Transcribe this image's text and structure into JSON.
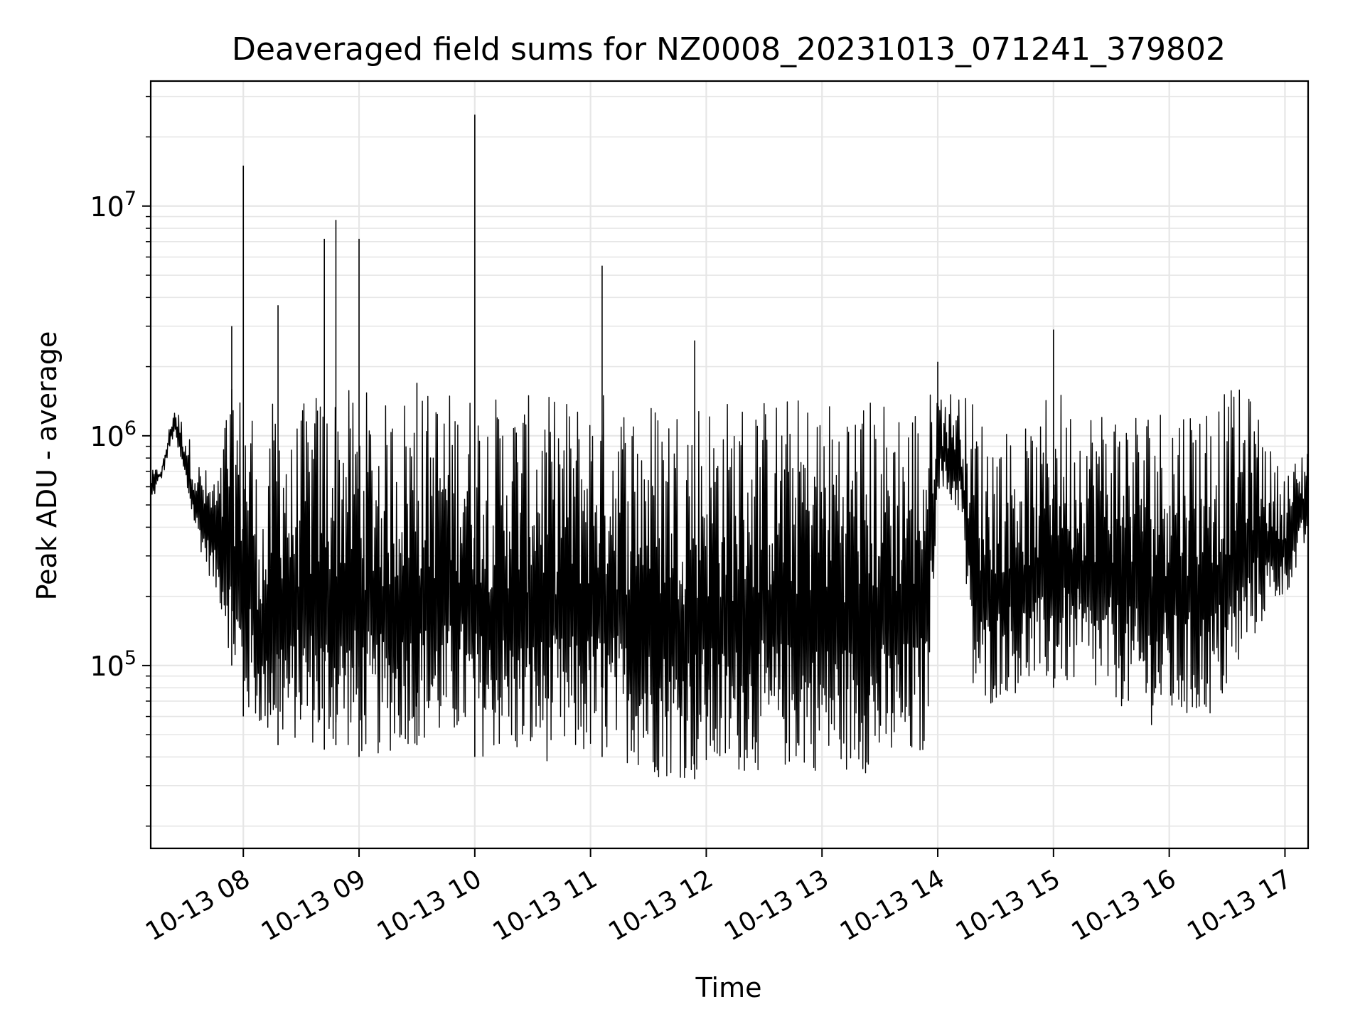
{
  "chart_data": {
    "type": "line",
    "title": "Deaveraged field sums for NZ0008_20231013_071241_379802",
    "xlabel": "Time",
    "ylabel": "Peak ADU - average",
    "yscale": "log",
    "ylim": [
      16000,
      35000000
    ],
    "xlim": [
      "2023-10-13 07:12",
      "2023-10-13 17:12"
    ],
    "grid": true,
    "line_color": "#000000",
    "grid_color": "#e6e6e6",
    "x_ticks": [
      {
        "value": "2023-10-13 08:00",
        "label": "10-13 08"
      },
      {
        "value": "2023-10-13 09:00",
        "label": "10-13 09"
      },
      {
        "value": "2023-10-13 10:00",
        "label": "10-13 10"
      },
      {
        "value": "2023-10-13 11:00",
        "label": "10-13 11"
      },
      {
        "value": "2023-10-13 12:00",
        "label": "10-13 12"
      },
      {
        "value": "2023-10-13 13:00",
        "label": "10-13 13"
      },
      {
        "value": "2023-10-13 14:00",
        "label": "10-13 14"
      },
      {
        "value": "2023-10-13 15:00",
        "label": "10-13 15"
      },
      {
        "value": "2023-10-13 16:00",
        "label": "10-13 16"
      },
      {
        "value": "2023-10-13 17:00",
        "label": "10-13 17"
      }
    ],
    "y_ticks": [
      {
        "value": 100000,
        "base": "10",
        "exp": "5"
      },
      {
        "value": 1000000,
        "base": "10",
        "exp": "6"
      },
      {
        "value": 10000000,
        "base": "10",
        "exp": "7"
      }
    ],
    "series": [
      {
        "x": [
          "2023-10-13 07:12",
          "2023-10-13 07:18",
          "2023-10-13 07:24",
          "2023-10-13 07:30",
          "2023-10-13 07:36",
          "2023-10-13 07:42",
          "2023-10-13 07:48",
          "2023-10-13 07:54",
          "2023-10-13 08:00",
          "2023-10-13 08:06",
          "2023-10-13 08:12",
          "2023-10-13 08:18",
          "2023-10-13 08:24",
          "2023-10-13 08:30",
          "2023-10-13 08:36",
          "2023-10-13 08:42",
          "2023-10-13 08:48",
          "2023-10-13 08:54",
          "2023-10-13 09:00",
          "2023-10-13 09:06",
          "2023-10-13 09:12",
          "2023-10-13 09:18",
          "2023-10-13 09:24",
          "2023-10-13 09:30",
          "2023-10-13 09:36",
          "2023-10-13 09:42",
          "2023-10-13 09:48",
          "2023-10-13 09:54",
          "2023-10-13 10:00",
          "2023-10-13 10:06",
          "2023-10-13 10:12",
          "2023-10-13 10:18",
          "2023-10-13 10:24",
          "2023-10-13 10:30",
          "2023-10-13 10:36",
          "2023-10-13 10:42",
          "2023-10-13 10:48",
          "2023-10-13 10:54",
          "2023-10-13 11:00",
          "2023-10-13 11:06",
          "2023-10-13 11:12",
          "2023-10-13 11:18",
          "2023-10-13 11:24",
          "2023-10-13 11:30",
          "2023-10-13 11:36",
          "2023-10-13 11:42",
          "2023-10-13 11:48",
          "2023-10-13 11:54",
          "2023-10-13 12:00",
          "2023-10-13 12:06",
          "2023-10-13 12:12",
          "2023-10-13 12:18",
          "2023-10-13 12:24",
          "2023-10-13 12:30",
          "2023-10-13 12:36",
          "2023-10-13 12:42",
          "2023-10-13 12:48",
          "2023-10-13 12:54",
          "2023-10-13 13:00",
          "2023-10-13 13:06",
          "2023-10-13 13:12",
          "2023-10-13 13:18",
          "2023-10-13 13:24",
          "2023-10-13 13:30",
          "2023-10-13 13:36",
          "2023-10-13 13:42",
          "2023-10-13 13:48",
          "2023-10-13 13:54",
          "2023-10-13 14:00",
          "2023-10-13 14:06",
          "2023-10-13 14:12",
          "2023-10-13 14:18",
          "2023-10-13 14:24",
          "2023-10-13 14:30",
          "2023-10-13 14:36",
          "2023-10-13 14:42",
          "2023-10-13 14:48",
          "2023-10-13 14:54",
          "2023-10-13 15:00",
          "2023-10-13 15:06",
          "2023-10-13 15:12",
          "2023-10-13 15:18",
          "2023-10-13 15:24",
          "2023-10-13 15:30",
          "2023-10-13 15:36",
          "2023-10-13 15:42",
          "2023-10-13 15:48",
          "2023-10-13 15:54",
          "2023-10-13 16:00",
          "2023-10-13 16:06",
          "2023-10-13 16:12",
          "2023-10-13 16:18",
          "2023-10-13 16:24",
          "2023-10-13 16:30",
          "2023-10-13 16:36",
          "2023-10-13 16:42",
          "2023-10-13 16:48",
          "2023-10-13 16:54",
          "2023-10-13 17:00",
          "2023-10-13 17:06",
          "2023-10-13 17:12"
        ],
        "low": [
          500000,
          650000,
          1000000,
          600000,
          350000,
          250000,
          180000,
          100000,
          60000,
          55000,
          50000,
          45000,
          45000,
          48000,
          45000,
          43000,
          45000,
          43000,
          40000,
          40000,
          40000,
          42000,
          45000,
          45000,
          45000,
          45000,
          45000,
          48000,
          40000,
          40000,
          42000,
          40000,
          38000,
          38000,
          38000,
          38000,
          38000,
          38000,
          40000,
          40000,
          40000,
          38000,
          36000,
          34000,
          32000,
          32000,
          32000,
          32000,
          32000,
          32000,
          32000,
          34000,
          34000,
          35000,
          35000,
          35000,
          35000,
          35000,
          34000,
          34000,
          34000,
          34000,
          34000,
          34000,
          35000,
          35000,
          36000,
          40000,
          600000,
          500000,
          450000,
          70000,
          60000,
          70000,
          75000,
          75000,
          80000,
          80000,
          80000,
          80000,
          80000,
          75000,
          70000,
          70000,
          65000,
          60000,
          55000,
          55000,
          55000,
          55000,
          55000,
          58000,
          60000,
          70000,
          90000,
          120000,
          150000,
          180000,
          200000,
          250000,
          350000
        ],
        "high": [
          700000,
          750000,
          1400000,
          1100000,
          800000,
          700000,
          700000,
          3000000,
          15000000,
          800000,
          500000,
          3700000,
          900000,
          1400000,
          1400000,
          7200000,
          8700000,
          1400000,
          7200000,
          1400000,
          1400000,
          1400000,
          1600000,
          1700000,
          1600000,
          1600000,
          1600000,
          1500000,
          25000000,
          1500000,
          1500000,
          1500000,
          1500000,
          1500000,
          1500000,
          1500000,
          1500000,
          1500000,
          1500000,
          5500000,
          1500000,
          1500000,
          1500000,
          1500000,
          1500000,
          1500000,
          1500000,
          2600000,
          1500000,
          1500000,
          1500000,
          1500000,
          1500000,
          1500000,
          1500000,
          1500000,
          1500000,
          1500000,
          1500000,
          1500000,
          1500000,
          1500000,
          1500000,
          1500000,
          1500000,
          1500000,
          1500000,
          1500000,
          2100000,
          1600000,
          1500000,
          1500000,
          1200000,
          1100000,
          1100000,
          1100000,
          1100000,
          1100000,
          2900000,
          1400000,
          1400000,
          1400000,
          1400000,
          1400000,
          1400000,
          1400000,
          1400000,
          1400000,
          1500000,
          1500000,
          1500000,
          1500000,
          1600000,
          1600000,
          1600000,
          1500000,
          1200000,
          800000,
          700000,
          800000,
          1000000
        ]
      }
    ]
  }
}
